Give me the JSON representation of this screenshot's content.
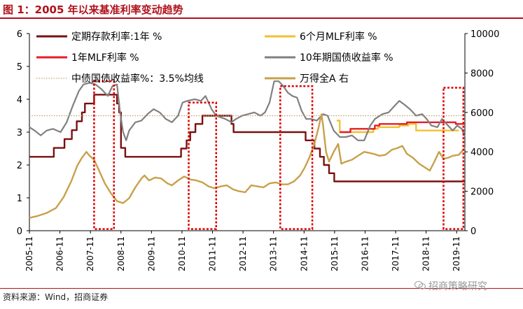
{
  "title": "图 1：2005 年以来基准利率变动趋势",
  "source": "资料来源：Wind，招商证券",
  "watermark": "招商策略研究",
  "chart_data": {
    "type": "line",
    "x_ticks": [
      "2005-11",
      "2006-11",
      "2007-11",
      "2008-11",
      "2009-11",
      "2010-11",
      "2011-11",
      "2012-11",
      "2013-11",
      "2014-11",
      "2015-11",
      "2016-11",
      "2017-11",
      "2018-11",
      "2019-11"
    ],
    "x_range": [
      2005.83,
      2020.1
    ],
    "y_left": {
      "range": [
        0,
        6
      ],
      "ticks": [
        "0",
        "1",
        "2",
        "3",
        "4",
        "5",
        "6"
      ]
    },
    "y_right": {
      "range": [
        0,
        10000
      ],
      "ticks": [
        "0",
        "2000",
        "4000",
        "6000",
        "8000",
        "10000"
      ]
    },
    "legend": [
      {
        "label": "定期存款利率:1年 %",
        "color": "#7a1010"
      },
      {
        "label": "6个月MLF利率 %",
        "color": "#f2c12e"
      },
      {
        "label": "1年MLF利率 %",
        "color": "#e41e26"
      },
      {
        "label": "10年期国债收益率 %",
        "color": "#808080"
      },
      {
        "label": "中债国债收益率%：3.5%均线",
        "color": "#c0a060"
      },
      {
        "label": "万得全A 右",
        "color": "#c8a04a"
      }
    ],
    "series": [
      {
        "name": "定期存款利率:1年 %",
        "axis": "left",
        "color": "#7a1010",
        "step": true,
        "points": [
          [
            2005.83,
            2.25
          ],
          [
            2006.63,
            2.52
          ],
          [
            2006.98,
            2.79
          ],
          [
            2007.22,
            3.06
          ],
          [
            2007.38,
            3.33
          ],
          [
            2007.55,
            3.6
          ],
          [
            2007.65,
            3.87
          ],
          [
            2007.95,
            4.14
          ],
          [
            2008.7,
            3.87
          ],
          [
            2008.77,
            3.6
          ],
          [
            2008.83,
            2.52
          ],
          [
            2008.97,
            2.25
          ],
          [
            2010.8,
            2.5
          ],
          [
            2010.98,
            2.75
          ],
          [
            2011.1,
            3.0
          ],
          [
            2011.27,
            3.25
          ],
          [
            2011.5,
            3.5
          ],
          [
            2012.45,
            3.25
          ],
          [
            2012.52,
            3.0
          ],
          [
            2014.88,
            2.75
          ],
          [
            2015.17,
            2.5
          ],
          [
            2015.35,
            2.25
          ],
          [
            2015.48,
            2.0
          ],
          [
            2015.65,
            1.75
          ],
          [
            2015.82,
            1.5
          ],
          [
            2020.1,
            1.5
          ]
        ]
      },
      {
        "name": "6个月MLF利率 %",
        "axis": "left",
        "color": "#f2c12e",
        "step": true,
        "points": [
          [
            2015.9,
            3.35
          ],
          [
            2016.0,
            3.0
          ],
          [
            2017.1,
            3.1
          ],
          [
            2017.25,
            3.15
          ],
          [
            2017.95,
            3.2
          ],
          [
            2018.25,
            3.25
          ],
          [
            2018.5,
            3.05
          ],
          [
            2019.9,
            3.05
          ]
        ]
      },
      {
        "name": "1年MLF利率 %",
        "axis": "left",
        "color": "#e41e26",
        "step": true,
        "points": [
          [
            2016.0,
            3.0
          ],
          [
            2016.35,
            3.1
          ],
          [
            2017.15,
            3.2
          ],
          [
            2017.3,
            3.25
          ],
          [
            2018.2,
            3.3
          ],
          [
            2019.8,
            3.25
          ],
          [
            2020.1,
            3.25
          ]
        ]
      },
      {
        "name": "10年期国债收益率 %",
        "axis": "left",
        "color": "#808080",
        "step": false,
        "points": [
          [
            2005.83,
            3.15
          ],
          [
            2006.0,
            3.05
          ],
          [
            2006.2,
            2.9
          ],
          [
            2006.4,
            3.05
          ],
          [
            2006.6,
            3.1
          ],
          [
            2006.85,
            3.0
          ],
          [
            2007.05,
            3.3
          ],
          [
            2007.25,
            3.8
          ],
          [
            2007.45,
            4.25
          ],
          [
            2007.6,
            4.45
          ],
          [
            2007.8,
            4.5
          ],
          [
            2008.0,
            4.45
          ],
          [
            2008.2,
            4.3
          ],
          [
            2008.4,
            4.1
          ],
          [
            2008.55,
            4.4
          ],
          [
            2008.7,
            4.45
          ],
          [
            2008.8,
            3.6
          ],
          [
            2008.9,
            3.0
          ],
          [
            2009.0,
            2.75
          ],
          [
            2009.1,
            3.05
          ],
          [
            2009.3,
            3.3
          ],
          [
            2009.5,
            3.35
          ],
          [
            2009.7,
            3.55
          ],
          [
            2009.9,
            3.7
          ],
          [
            2010.1,
            3.6
          ],
          [
            2010.3,
            3.4
          ],
          [
            2010.5,
            3.3
          ],
          [
            2010.7,
            3.5
          ],
          [
            2010.85,
            3.9
          ],
          [
            2011.0,
            3.95
          ],
          [
            2011.25,
            4.0
          ],
          [
            2011.45,
            3.95
          ],
          [
            2011.6,
            4.1
          ],
          [
            2011.8,
            3.7
          ],
          [
            2011.95,
            3.5
          ],
          [
            2012.1,
            3.45
          ],
          [
            2012.25,
            3.4
          ],
          [
            2012.45,
            3.3
          ],
          [
            2012.6,
            3.4
          ],
          [
            2012.8,
            3.5
          ],
          [
            2013.0,
            3.55
          ],
          [
            2013.2,
            3.6
          ],
          [
            2013.4,
            3.5
          ],
          [
            2013.55,
            3.6
          ],
          [
            2013.7,
            3.9
          ],
          [
            2013.85,
            4.55
          ],
          [
            2014.0,
            4.55
          ],
          [
            2014.15,
            4.4
          ],
          [
            2014.3,
            4.2
          ],
          [
            2014.45,
            4.1
          ],
          [
            2014.6,
            4.05
          ],
          [
            2014.75,
            3.65
          ],
          [
            2014.9,
            3.4
          ],
          [
            2015.05,
            3.4
          ],
          [
            2015.25,
            3.35
          ],
          [
            2015.45,
            3.55
          ],
          [
            2015.6,
            3.5
          ],
          [
            2015.8,
            3.05
          ],
          [
            2016.0,
            2.85
          ],
          [
            2016.2,
            2.85
          ],
          [
            2016.4,
            2.9
          ],
          [
            2016.6,
            2.75
          ],
          [
            2016.8,
            2.75
          ],
          [
            2017.0,
            3.2
          ],
          [
            2017.15,
            3.4
          ],
          [
            2017.4,
            3.55
          ],
          [
            2017.6,
            3.6
          ],
          [
            2017.8,
            3.8
          ],
          [
            2017.95,
            3.95
          ],
          [
            2018.1,
            3.85
          ],
          [
            2018.3,
            3.7
          ],
          [
            2018.5,
            3.5
          ],
          [
            2018.7,
            3.55
          ],
          [
            2018.85,
            3.4
          ],
          [
            2019.0,
            3.2
          ],
          [
            2019.2,
            3.15
          ],
          [
            2019.35,
            3.4
          ],
          [
            2019.5,
            3.25
          ],
          [
            2019.7,
            3.05
          ],
          [
            2019.85,
            3.2
          ],
          [
            2020.0,
            3.1
          ],
          [
            2020.1,
            2.85
          ]
        ]
      },
      {
        "name": "中债国债收益率%：3.5%均线",
        "axis": "left",
        "color": "#c0a060",
        "dotted": true,
        "step": false,
        "points": [
          [
            2005.83,
            3.5
          ],
          [
            2020.1,
            3.5
          ]
        ]
      },
      {
        "name": "万得全A 右",
        "axis": "right",
        "color": "#c8a04a",
        "step": false,
        "points": [
          [
            2005.83,
            650
          ],
          [
            2006.1,
            750
          ],
          [
            2006.4,
            900
          ],
          [
            2006.7,
            1150
          ],
          [
            2006.95,
            1700
          ],
          [
            2007.2,
            2500
          ],
          [
            2007.4,
            3300
          ],
          [
            2007.55,
            3700
          ],
          [
            2007.7,
            4000
          ],
          [
            2007.8,
            3800
          ],
          [
            2007.95,
            3600
          ],
          [
            2008.1,
            3100
          ],
          [
            2008.3,
            2400
          ],
          [
            2008.5,
            1900
          ],
          [
            2008.7,
            1500
          ],
          [
            2008.9,
            1400
          ],
          [
            2009.1,
            1650
          ],
          [
            2009.3,
            2200
          ],
          [
            2009.5,
            2650
          ],
          [
            2009.6,
            2800
          ],
          [
            2009.75,
            2550
          ],
          [
            2009.95,
            2700
          ],
          [
            2010.15,
            2650
          ],
          [
            2010.35,
            2400
          ],
          [
            2010.5,
            2300
          ],
          [
            2010.7,
            2550
          ],
          [
            2010.9,
            2750
          ],
          [
            2011.1,
            2600
          ],
          [
            2011.3,
            2550
          ],
          [
            2011.5,
            2450
          ],
          [
            2011.7,
            2250
          ],
          [
            2011.9,
            2150
          ],
          [
            2012.1,
            2250
          ],
          [
            2012.3,
            2300
          ],
          [
            2012.5,
            2100
          ],
          [
            2012.7,
            2000
          ],
          [
            2012.9,
            1950
          ],
          [
            2013.1,
            2300
          ],
          [
            2013.3,
            2250
          ],
          [
            2013.5,
            2200
          ],
          [
            2013.7,
            2400
          ],
          [
            2013.9,
            2450
          ],
          [
            2014.1,
            2350
          ],
          [
            2014.3,
            2350
          ],
          [
            2014.5,
            2500
          ],
          [
            2014.7,
            2800
          ],
          [
            2014.85,
            3200
          ],
          [
            2015.0,
            3700
          ],
          [
            2015.15,
            4300
          ],
          [
            2015.3,
            5200
          ],
          [
            2015.4,
            5900
          ],
          [
            2015.45,
            5400
          ],
          [
            2015.55,
            4000
          ],
          [
            2015.65,
            3500
          ],
          [
            2015.8,
            4000
          ],
          [
            2015.95,
            4400
          ],
          [
            2016.05,
            3400
          ],
          [
            2016.2,
            3500
          ],
          [
            2016.4,
            3600
          ],
          [
            2016.6,
            3800
          ],
          [
            2016.8,
            4000
          ],
          [
            2016.95,
            3950
          ],
          [
            2017.1,
            3900
          ],
          [
            2017.3,
            3800
          ],
          [
            2017.5,
            3850
          ],
          [
            2017.7,
            4100
          ],
          [
            2017.9,
            4200
          ],
          [
            2018.05,
            4300
          ],
          [
            2018.2,
            3900
          ],
          [
            2018.4,
            3700
          ],
          [
            2018.6,
            3400
          ],
          [
            2018.8,
            3200
          ],
          [
            2018.95,
            3050
          ],
          [
            2019.1,
            3500
          ],
          [
            2019.25,
            4000
          ],
          [
            2019.4,
            3650
          ],
          [
            2019.55,
            3700
          ],
          [
            2019.7,
            3800
          ],
          [
            2019.9,
            3850
          ],
          [
            2020.1,
            4200
          ]
        ]
      }
    ],
    "highlight_boxes": [
      {
        "x0": 2007.95,
        "x1": 2008.6,
        "y0": 0.05,
        "y1": 4.55
      },
      {
        "x0": 2011.05,
        "x1": 2011.95,
        "y0": 0.05,
        "y1": 3.9
      },
      {
        "x0": 2014.05,
        "x1": 2015.1,
        "y0": 0.05,
        "y1": 4.4
      },
      {
        "x0": 2019.4,
        "x1": 2020.05,
        "y0": 0.05,
        "y1": 4.35
      }
    ]
  }
}
